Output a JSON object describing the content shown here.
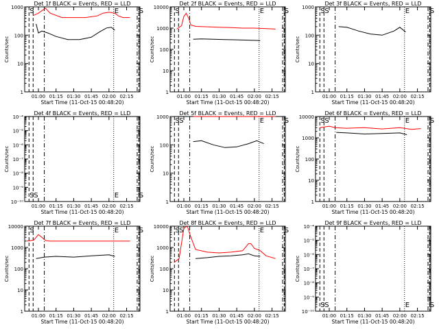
{
  "chart_data": [
    {
      "type": "line",
      "title": "Det 1f BLACK = Events, RED = LLD",
      "xlabel": "Start Time (11-Oct-15 00:48:20)",
      "ylabel": "Counts/sec",
      "y_scale": "log",
      "ylim": [
        1,
        1000
      ],
      "y_ticks": [
        "1",
        "10",
        "100",
        "1000"
      ],
      "x_ticks": [
        "01:00",
        "01:15",
        "01:30",
        "01:45",
        "02:00",
        "02:15"
      ],
      "markers": [
        "S",
        "E",
        "S"
      ],
      "series": [
        {
          "color": "#ff0000",
          "x": [
            "00:56",
            "01:00",
            "01:06",
            "01:10",
            "01:20",
            "01:30",
            "01:40",
            "01:50",
            "01:55",
            "02:00",
            "02:05",
            "02:08",
            "02:12",
            "02:18"
          ],
          "values": [
            500,
            600,
            900,
            600,
            420,
            420,
            420,
            480,
            600,
            650,
            600,
            480,
            420,
            420
          ]
        },
        {
          "color": "#000000",
          "x": [
            "00:58",
            "01:00",
            "01:03",
            "01:08",
            "01:15",
            "01:25",
            "01:35",
            "01:45",
            "01:52",
            "01:58",
            "02:02",
            "02:05"
          ],
          "values": [
            250,
            120,
            140,
            120,
            90,
            70,
            70,
            85,
            130,
            180,
            190,
            150
          ]
        }
      ]
    },
    {
      "type": "line",
      "title": "Det 2f BLACK = Events, RED = LLD",
      "xlabel": "Start Time (11-Oct-15 00:48:20)",
      "ylabel": "Counts/sec",
      "y_scale": "log",
      "ylim": [
        1,
        10000
      ],
      "y_ticks": [
        "1",
        "10",
        "100",
        "1000",
        "10000"
      ],
      "x_ticks": [
        "01:00",
        "01:15",
        "01:30",
        "01:45",
        "02:00",
        "02:15"
      ],
      "markers": [
        "S",
        "E",
        "S"
      ],
      "series": [
        {
          "color": "#ff0000",
          "x": [
            "00:54",
            "00:58",
            "01:00",
            "01:02",
            "01:04",
            "01:06",
            "01:10",
            "01:20",
            "01:30",
            "01:40",
            "01:50",
            "02:00",
            "02:10",
            "02:18"
          ],
          "values": [
            900,
            1300,
            3500,
            5000,
            3000,
            1400,
            1200,
            1150,
            1100,
            1050,
            1000,
            1000,
            950,
            900
          ]
        },
        {
          "color": "#000000",
          "x": [
            "01:08",
            "01:15",
            "01:25",
            "01:35",
            "01:45",
            "01:55",
            "02:05"
          ],
          "values": [
            300,
            310,
            300,
            290,
            280,
            270,
            260
          ]
        }
      ]
    },
    {
      "type": "line",
      "title": "Det 3f BLACK = Events, RED = LLD",
      "xlabel": "Start Time (11-Oct-15 00:48:20)",
      "ylabel": "Counts/sec",
      "y_scale": "log",
      "ylim": [
        1,
        1000
      ],
      "y_ticks": [
        "1",
        "10",
        "100",
        "1000"
      ],
      "x_ticks": [
        "01:00",
        "01:15",
        "01:30",
        "01:45",
        "02:00",
        "02:15"
      ],
      "markers": [
        "S",
        "S",
        "E",
        "S"
      ],
      "series": [
        {
          "color": "#000000",
          "x": [
            "01:08",
            "01:15",
            "01:25",
            "01:35",
            "01:45",
            "01:55",
            "02:00",
            "02:05"
          ],
          "values": [
            200,
            190,
            140,
            110,
            100,
            140,
            190,
            130
          ]
        }
      ]
    },
    {
      "type": "line",
      "title": "Det 4f BLACK = Events, RED = LLD",
      "xlabel": "Start Time (11-Oct-15 00:48:20)",
      "ylabel": "Counts/sec",
      "y_scale": "log",
      "ylim": [
        1e-10,
        0.0001
      ],
      "y_ticks": [
        "10⁻¹⁰",
        "10⁻⁹",
        "10⁻⁸",
        "10⁻⁷",
        "10⁻⁶",
        "10⁻⁵",
        "10⁻⁴"
      ],
      "x_ticks": [
        "01:00",
        "01:15",
        "01:30",
        "01:45",
        "02:00",
        "02:15"
      ],
      "markers": [
        "S",
        "S",
        "E",
        "S"
      ],
      "series": []
    },
    {
      "type": "line",
      "title": "Det 5f BLACK = Events, RED = LLD",
      "xlabel": "Start Time (11-Oct-15 00:48:20)",
      "ylabel": "Counts/sec",
      "y_scale": "log",
      "ylim": [
        1,
        1000
      ],
      "y_ticks": [
        "1",
        "10",
        "100",
        "1000"
      ],
      "x_ticks": [
        "01:00",
        "01:15",
        "01:30",
        "01:45",
        "02:00",
        "02:15"
      ],
      "markers": [
        "S",
        "S",
        "E",
        "S"
      ],
      "series": [
        {
          "color": "#ff0000",
          "x": [
            "01:08",
            "01:20",
            "01:35",
            "01:50",
            "02:05",
            "02:18"
          ],
          "values": [
            1000,
            1000,
            1000,
            1000,
            1000,
            1000
          ]
        },
        {
          "color": "#000000",
          "x": [
            "01:08",
            "01:15",
            "01:25",
            "01:35",
            "01:45",
            "01:55",
            "02:02",
            "02:08"
          ],
          "values": [
            130,
            140,
            100,
            80,
            85,
            110,
            140,
            110
          ]
        }
      ]
    },
    {
      "type": "line",
      "title": "Det 6f BLACK = Events, RED = LLD",
      "xlabel": "Start Time (11-Oct-15 00:48:20)",
      "ylabel": "Counts/sec",
      "y_scale": "log",
      "ylim": [
        1,
        10000
      ],
      "y_ticks": [
        "1",
        "10",
        "100",
        "1000",
        "10000"
      ],
      "x_ticks": [
        "01:00",
        "01:15",
        "01:30",
        "01:45",
        "02:00",
        "02:15"
      ],
      "markers": [
        "S",
        "S",
        "E",
        "S"
      ],
      "series": [
        {
          "color": "#ff0000",
          "x": [
            "00:52",
            "01:00",
            "01:05",
            "01:15",
            "01:30",
            "01:45",
            "02:00",
            "02:10",
            "02:18"
          ],
          "values": [
            3000,
            3500,
            3000,
            2800,
            3000,
            2600,
            3000,
            2500,
            2700
          ]
        },
        {
          "color": "#000000",
          "x": [
            "01:06",
            "01:15",
            "01:30",
            "01:45",
            "02:00",
            "02:06"
          ],
          "values": [
            1800,
            1700,
            1500,
            1600,
            1700,
            1400
          ]
        }
      ]
    },
    {
      "type": "line",
      "title": "Det 7f BLACK = Events, RED = LLD",
      "xlabel": "Start Time (11-Oct-15 00:48:20)",
      "ylabel": "Counts/sec",
      "y_scale": "log",
      "ylim": [
        1,
        10000
      ],
      "y_ticks": [
        "1",
        "10",
        "100",
        "1000",
        "10000"
      ],
      "x_ticks": [
        "01:00",
        "01:15",
        "01:30",
        "01:45",
        "02:00",
        "02:15"
      ],
      "markers": [
        "S",
        "E",
        "S"
      ],
      "series": [
        {
          "color": "#ff0000",
          "x": [
            "00:50",
            "00:56",
            "01:00",
            "01:03",
            "01:06",
            "01:10",
            "01:30",
            "02:00",
            "02:18"
          ],
          "values": [
            2000,
            2200,
            4000,
            3000,
            2100,
            2000,
            2000,
            2000,
            2000
          ]
        },
        {
          "color": "#000000",
          "x": [
            "00:58",
            "01:05",
            "01:15",
            "01:30",
            "01:45",
            "02:00",
            "02:05"
          ],
          "values": [
            300,
            350,
            380,
            350,
            400,
            450,
            380
          ]
        }
      ]
    },
    {
      "type": "line",
      "title": "Det 8f BLACK = Events, RED = LLD",
      "xlabel": "Start Time (11-Oct-15 00:48:20)",
      "ylabel": "Counts/sec",
      "y_scale": "log",
      "ylim": [
        1,
        10000
      ],
      "y_ticks": [
        "1",
        "10",
        "100",
        "1000",
        "10000"
      ],
      "x_ticks": [
        "01:00",
        "01:15",
        "01:30",
        "01:45",
        "02:00",
        "02:15"
      ],
      "markers": [
        "S",
        "S",
        "E",
        "S"
      ],
      "series": [
        {
          "color": "#ff0000",
          "x": [
            "00:52",
            "00:56",
            "01:00",
            "01:03",
            "01:06",
            "01:10",
            "01:20",
            "01:30",
            "01:40",
            "01:50",
            "01:55",
            "01:57",
            "02:00",
            "02:05",
            "02:10",
            "02:18"
          ],
          "values": [
            200,
            300,
            8000,
            10000,
            3000,
            800,
            600,
            550,
            600,
            700,
            1500,
            1500,
            900,
            700,
            400,
            300
          ]
        },
        {
          "color": "#000000",
          "x": [
            "01:10",
            "01:20",
            "01:30",
            "01:40",
            "01:50",
            "01:55",
            "02:00",
            "02:05"
          ],
          "values": [
            300,
            330,
            380,
            400,
            450,
            500,
            400,
            380
          ]
        }
      ]
    },
    {
      "type": "line",
      "title": "Det 9f BLACK = Events, RED = LLD",
      "xlabel": "Start Time (11-Oct-15 00:48:20)",
      "ylabel": "Counts/sec",
      "y_scale": "log",
      "ylim": [
        1e-10,
        0.0001
      ],
      "y_ticks": [
        "10⁻¹⁰",
        "10⁻⁹",
        "10⁻⁸",
        "10⁻⁷",
        "10⁻⁶",
        "10⁻⁵",
        "10⁻⁴"
      ],
      "x_ticks": [
        "01:00",
        "01:15",
        "01:30",
        "01:45",
        "02:00",
        "02:15"
      ],
      "markers": [
        "S",
        "S",
        "E",
        "S"
      ],
      "series": []
    }
  ]
}
